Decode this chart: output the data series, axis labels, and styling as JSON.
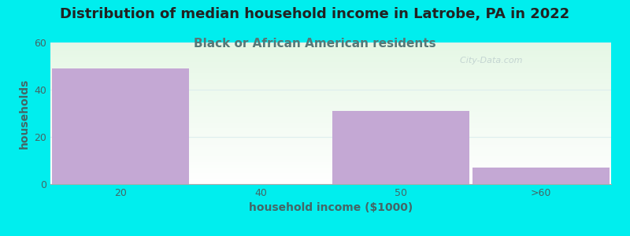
{
  "title": "Distribution of median household income in Latrobe, PA in 2022",
  "subtitle": "Black or African American residents",
  "xlabel": "household income ($1000)",
  "ylabel": "households",
  "categories": [
    "20",
    "40",
    "50",
    ">60"
  ],
  "values": [
    49,
    0,
    31,
    7
  ],
  "bar_color": "#C4A8D4",
  "background_outer": "#00EEEE",
  "ylim": [
    0,
    60
  ],
  "yticks": [
    0,
    20,
    40,
    60
  ],
  "title_fontsize": 13,
  "subtitle_fontsize": 11,
  "axis_label_fontsize": 10,
  "tick_fontsize": 9,
  "title_color": "#222222",
  "subtitle_color": "#557777",
  "axis_label_color": "#446666",
  "tick_color": "#446666",
  "watermark": "  City-Data.com",
  "watermark_color": "#bbcccc",
  "grid_color": "#ddeeee",
  "bg_top_color": "#eaf5ea",
  "bg_bottom_color": "#ffffff"
}
